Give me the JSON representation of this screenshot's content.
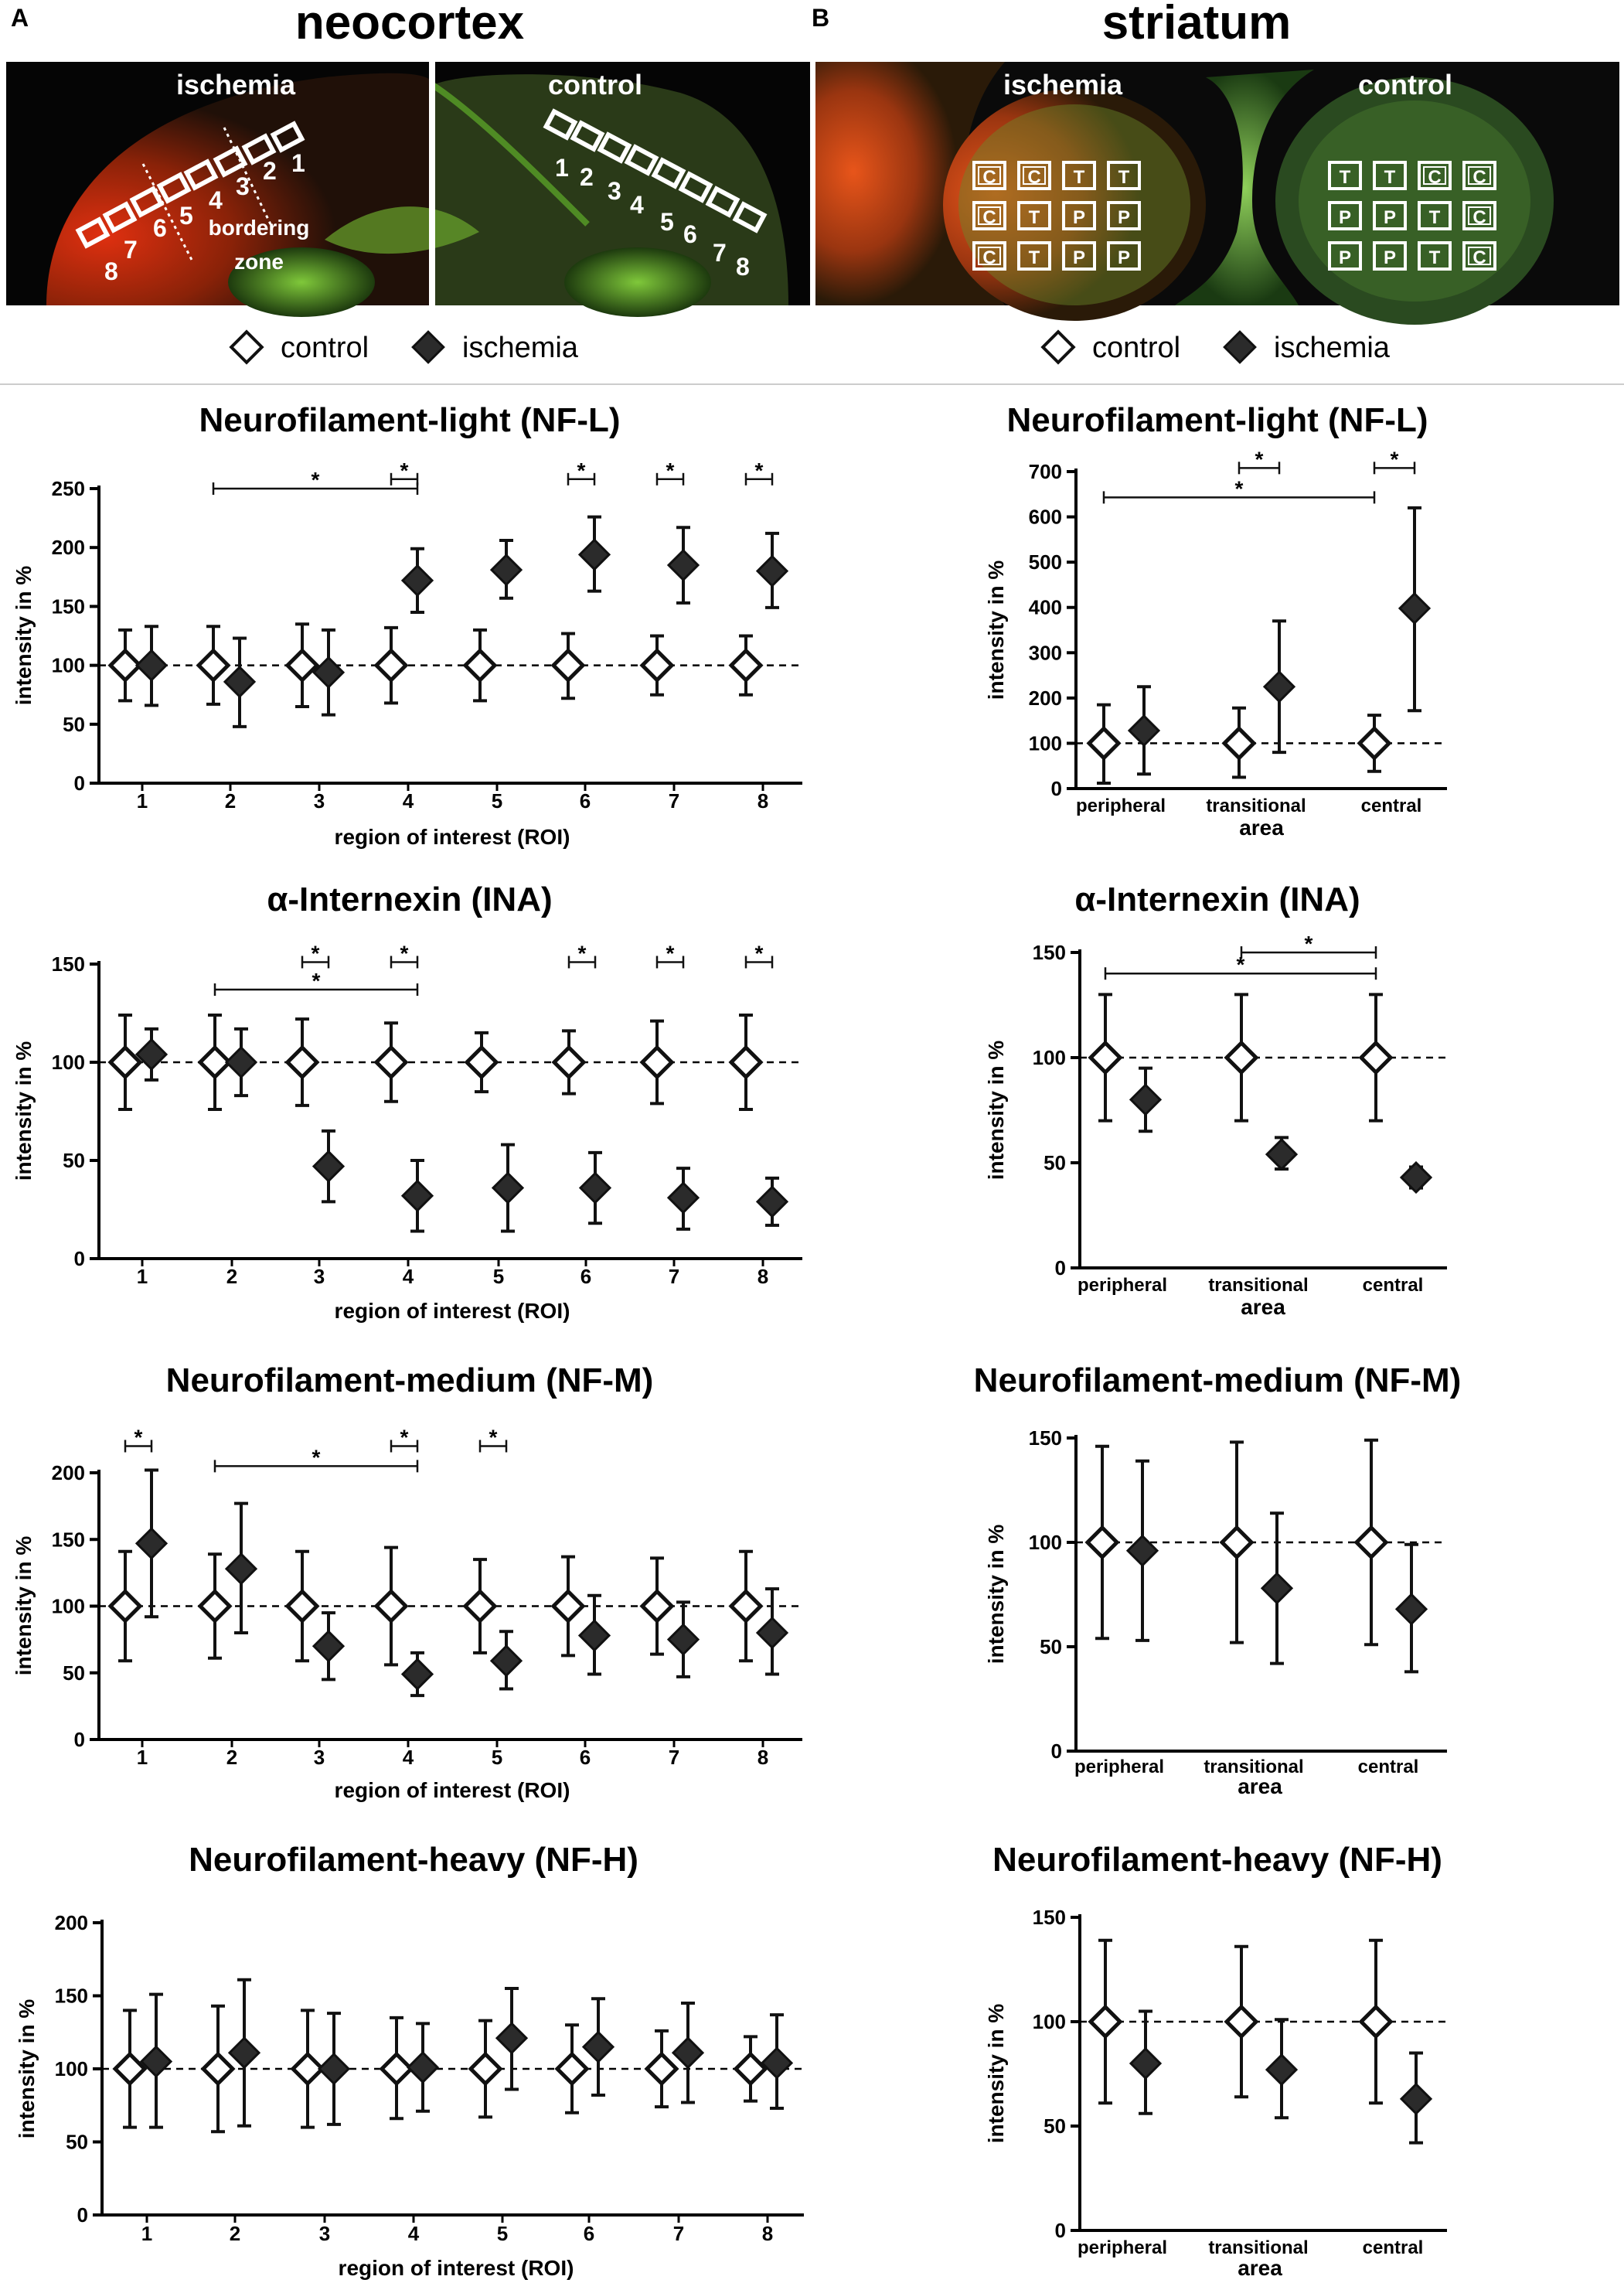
{
  "panels": {
    "A": {
      "letter": "A",
      "title": "neocortex",
      "image": {
        "ischemia_label": "ischemia",
        "control_label": "control",
        "bordering_label": "bordering",
        "zone_label": "zone",
        "roi_numbers_ischemia": [
          "8",
          "7",
          "6",
          "5",
          "4",
          "3",
          "2",
          "1"
        ],
        "roi_numbers_control": [
          "1",
          "2",
          "3",
          "4",
          "5",
          "6",
          "7",
          "8"
        ]
      }
    },
    "B": {
      "letter": "B",
      "title": "striatum",
      "image": {
        "ischemia_label": "ischemia",
        "control_label": "control",
        "box_grid_ischemia": [
          [
            "C",
            "C",
            "T",
            "T"
          ],
          [
            "C",
            "T",
            "P",
            "P"
          ],
          [
            "C",
            "T",
            "P",
            "P"
          ]
        ],
        "box_grid_control": [
          [
            "T",
            "T",
            "C",
            "C"
          ],
          [
            "P",
            "P",
            "T",
            "C"
          ],
          [
            "P",
            "P",
            "T",
            "C"
          ]
        ]
      }
    }
  },
  "legend": {
    "control": "control",
    "ischemia": "ischemia"
  },
  "colors": {
    "control_fill": "#ffffff",
    "ischemia_fill": "#2b2b2b",
    "marker_stroke": "#111111",
    "axis": "#000000"
  },
  "chart_data": [
    {
      "id": "A1",
      "type": "scatter",
      "title": "Neurofilament-light (NF-L)",
      "xlabel": "region of interest (ROI)",
      "ylabel": "intensity in %",
      "categories": [
        "1",
        "2",
        "3",
        "4",
        "5",
        "6",
        "7",
        "8"
      ],
      "ylim": [
        0,
        250
      ],
      "yticks": [
        0,
        50,
        100,
        150,
        200,
        250
      ],
      "reference_line": 100,
      "series": [
        {
          "name": "control",
          "values": [
            100,
            100,
            100,
            100,
            100,
            100,
            100,
            100
          ],
          "err_low": [
            70,
            67,
            65,
            68,
            70,
            72,
            75,
            75
          ],
          "err_high": [
            130,
            133,
            135,
            132,
            130,
            127,
            125,
            125
          ]
        },
        {
          "name": "ischemia",
          "values": [
            100,
            86,
            94,
            172,
            181,
            194,
            185,
            180
          ],
          "err_low": [
            66,
            48,
            58,
            145,
            157,
            163,
            153,
            149
          ],
          "err_high": [
            133,
            123,
            130,
            199,
            206,
            226,
            217,
            212
          ]
        }
      ],
      "significance": [
        {
          "from": "2",
          "to": "4",
          "label": "*",
          "level": 250
        },
        {
          "from": "4",
          "to": "4",
          "label": "*",
          "level": 258,
          "short": true
        },
        {
          "from": "6",
          "to": "6",
          "label": "*",
          "level": 258,
          "short": true
        },
        {
          "from": "7",
          "to": "7",
          "label": "*",
          "level": 258,
          "short": true
        },
        {
          "from": "8",
          "to": "8",
          "label": "*",
          "level": 258,
          "short": true
        }
      ]
    },
    {
      "id": "B1",
      "type": "scatter",
      "title": "Neurofilament-light (NF-L)",
      "xlabel": "area",
      "ylabel": "intensity in %",
      "categories": [
        "peripheral",
        "transitional",
        "central"
      ],
      "ylim": [
        0,
        700
      ],
      "yticks": [
        0,
        100,
        200,
        300,
        400,
        500,
        600,
        700
      ],
      "reference_line": 100,
      "series": [
        {
          "name": "control",
          "values": [
            100,
            100,
            100
          ],
          "err_low": [
            12,
            25,
            38
          ],
          "err_high": [
            185,
            178,
            162
          ]
        },
        {
          "name": "ischemia",
          "values": [
            128,
            225,
            398
          ],
          "err_low": [
            32,
            80,
            172
          ],
          "err_high": [
            225,
            370,
            620
          ]
        }
      ],
      "significance": [
        {
          "from": "transitional",
          "to": "transitional",
          "label": "*",
          "level": 708,
          "short": true
        },
        {
          "from": "central",
          "to": "central",
          "label": "*",
          "level": 708,
          "short": true
        },
        {
          "from": "peripheral",
          "to": "central",
          "label": "*",
          "level": 643
        }
      ]
    },
    {
      "id": "A2",
      "type": "scatter",
      "title": "α-Internexin (INA)",
      "xlabel": "region of interest (ROI)",
      "ylabel": "intensity in %",
      "categories": [
        "1",
        "2",
        "3",
        "4",
        "5",
        "6",
        "7",
        "8"
      ],
      "ylim": [
        0,
        150
      ],
      "yticks": [
        0,
        50,
        100,
        150
      ],
      "reference_line": 100,
      "series": [
        {
          "name": "control",
          "values": [
            100,
            100,
            100,
            100,
            100,
            100,
            100,
            100
          ],
          "err_low": [
            76,
            76,
            78,
            80,
            85,
            84,
            79,
            76
          ],
          "err_high": [
            124,
            124,
            122,
            120,
            115,
            116,
            121,
            124
          ]
        },
        {
          "name": "ischemia",
          "values": [
            104,
            100,
            47,
            32,
            36,
            36,
            31,
            29
          ],
          "err_low": [
            91,
            83,
            29,
            14,
            14,
            18,
            15,
            17
          ],
          "err_high": [
            117,
            117,
            65,
            50,
            58,
            54,
            46,
            41
          ]
        }
      ],
      "significance": [
        {
          "from": "2",
          "to": "4",
          "label": "*",
          "level": 137
        },
        {
          "from": "3",
          "to": "3",
          "label": "*",
          "level": 151,
          "short": true
        },
        {
          "from": "4",
          "to": "4",
          "label": "*",
          "level": 151,
          "short": true
        },
        {
          "from": "6",
          "to": "6",
          "label": "*",
          "level": 151,
          "short": true
        },
        {
          "from": "7",
          "to": "7",
          "label": "*",
          "level": 151,
          "short": true
        },
        {
          "from": "8",
          "to": "8",
          "label": "*",
          "level": 151,
          "short": true
        }
      ]
    },
    {
      "id": "B2",
      "type": "scatter",
      "title": "α-Internexin (INA)",
      "xlabel": "area",
      "ylabel": "intensity in %",
      "categories": [
        "peripheral",
        "transitional",
        "central"
      ],
      "ylim": [
        0,
        150
      ],
      "yticks": [
        0,
        50,
        100,
        150
      ],
      "reference_line": 100,
      "series": [
        {
          "name": "control",
          "values": [
            100,
            100,
            100
          ],
          "err_low": [
            70,
            70,
            70
          ],
          "err_high": [
            130,
            130,
            130
          ]
        },
        {
          "name": "ischemia",
          "values": [
            80,
            54,
            43
          ],
          "err_low": [
            65,
            47,
            38
          ],
          "err_high": [
            95,
            62,
            48
          ]
        }
      ],
      "significance": [
        {
          "from": "transitional",
          "to": "central",
          "label": "*",
          "level": 150
        },
        {
          "from": "peripheral",
          "to": "central",
          "label": "*",
          "level": 140
        }
      ]
    },
    {
      "id": "A3",
      "type": "scatter",
      "title": "Neurofilament-medium (NF-M)",
      "xlabel": "region of interest (ROI)",
      "ylabel": "intensity in %",
      "categories": [
        "1",
        "2",
        "3",
        "4",
        "5",
        "6",
        "7",
        "8"
      ],
      "ylim": [
        0,
        200
      ],
      "yticks": [
        0,
        50,
        100,
        150,
        200
      ],
      "reference_line": 100,
      "series": [
        {
          "name": "control",
          "values": [
            100,
            100,
            100,
            100,
            100,
            100,
            100,
            100
          ],
          "err_low": [
            59,
            61,
            59,
            56,
            65,
            63,
            64,
            59
          ],
          "err_high": [
            141,
            139,
            141,
            144,
            135,
            137,
            136,
            141
          ]
        },
        {
          "name": "ischemia",
          "values": [
            147,
            128,
            70,
            49,
            59,
            78,
            75,
            80
          ],
          "err_low": [
            92,
            80,
            45,
            33,
            38,
            49,
            47,
            49
          ],
          "err_high": [
            202,
            177,
            95,
            65,
            81,
            108,
            103,
            113
          ]
        }
      ],
      "significance": [
        {
          "from": "1",
          "to": "1",
          "label": "*",
          "level": 220,
          "short": true
        },
        {
          "from": "2",
          "to": "4",
          "label": "*",
          "level": 205
        },
        {
          "from": "4",
          "to": "4",
          "label": "*",
          "level": 220,
          "short": true
        },
        {
          "from": "5",
          "to": "5",
          "label": "*",
          "level": 220,
          "short": true
        }
      ]
    },
    {
      "id": "B3",
      "type": "scatter",
      "title": "Neurofilament-medium (NF-M)",
      "xlabel": "area",
      "ylabel": "intensity in %",
      "categories": [
        "peripheral",
        "transitional",
        "central"
      ],
      "ylim": [
        0,
        150
      ],
      "yticks": [
        0,
        50,
        100,
        150
      ],
      "reference_line": 100,
      "series": [
        {
          "name": "control",
          "values": [
            100,
            100,
            100
          ],
          "err_low": [
            54,
            52,
            51
          ],
          "err_high": [
            146,
            148,
            149
          ]
        },
        {
          "name": "ischemia",
          "values": [
            96,
            78,
            68
          ],
          "err_low": [
            53,
            42,
            38
          ],
          "err_high": [
            139,
            114,
            99
          ]
        }
      ],
      "significance": []
    },
    {
      "id": "A4",
      "type": "scatter",
      "title": "Neurofilament-heavy (NF-H)",
      "xlabel": "region of interest (ROI)",
      "ylabel": "intensity in %",
      "categories": [
        "1",
        "2",
        "3",
        "4",
        "5",
        "6",
        "7",
        "8"
      ],
      "ylim": [
        0,
        200
      ],
      "yticks": [
        0,
        50,
        100,
        150,
        200
      ],
      "reference_line": 100,
      "series": [
        {
          "name": "control",
          "values": [
            100,
            100,
            100,
            100,
            100,
            100,
            100,
            100
          ],
          "err_low": [
            60,
            57,
            60,
            66,
            67,
            70,
            74,
            78
          ],
          "err_high": [
            140,
            143,
            140,
            135,
            133,
            130,
            126,
            122
          ]
        },
        {
          "name": "ischemia",
          "values": [
            105,
            111,
            100,
            101,
            121,
            115,
            111,
            104
          ],
          "err_low": [
            60,
            61,
            62,
            71,
            86,
            82,
            77,
            73
          ],
          "err_high": [
            151,
            161,
            138,
            131,
            155,
            148,
            145,
            137
          ]
        }
      ],
      "significance": []
    },
    {
      "id": "B4",
      "type": "scatter",
      "title": "Neurofilament-heavy (NF-H)",
      "xlabel": "area",
      "ylabel": "intensity in %",
      "categories": [
        "peripheral",
        "transitional",
        "central"
      ],
      "ylim": [
        0,
        150
      ],
      "yticks": [
        0,
        50,
        100,
        150
      ],
      "reference_line": 100,
      "series": [
        {
          "name": "control",
          "values": [
            100,
            100,
            100
          ],
          "err_low": [
            61,
            64,
            61
          ],
          "err_high": [
            139,
            136,
            139
          ]
        },
        {
          "name": "ischemia",
          "values": [
            80,
            77,
            63
          ],
          "err_low": [
            56,
            54,
            42
          ],
          "err_high": [
            105,
            101,
            85
          ]
        }
      ],
      "significance": []
    }
  ]
}
